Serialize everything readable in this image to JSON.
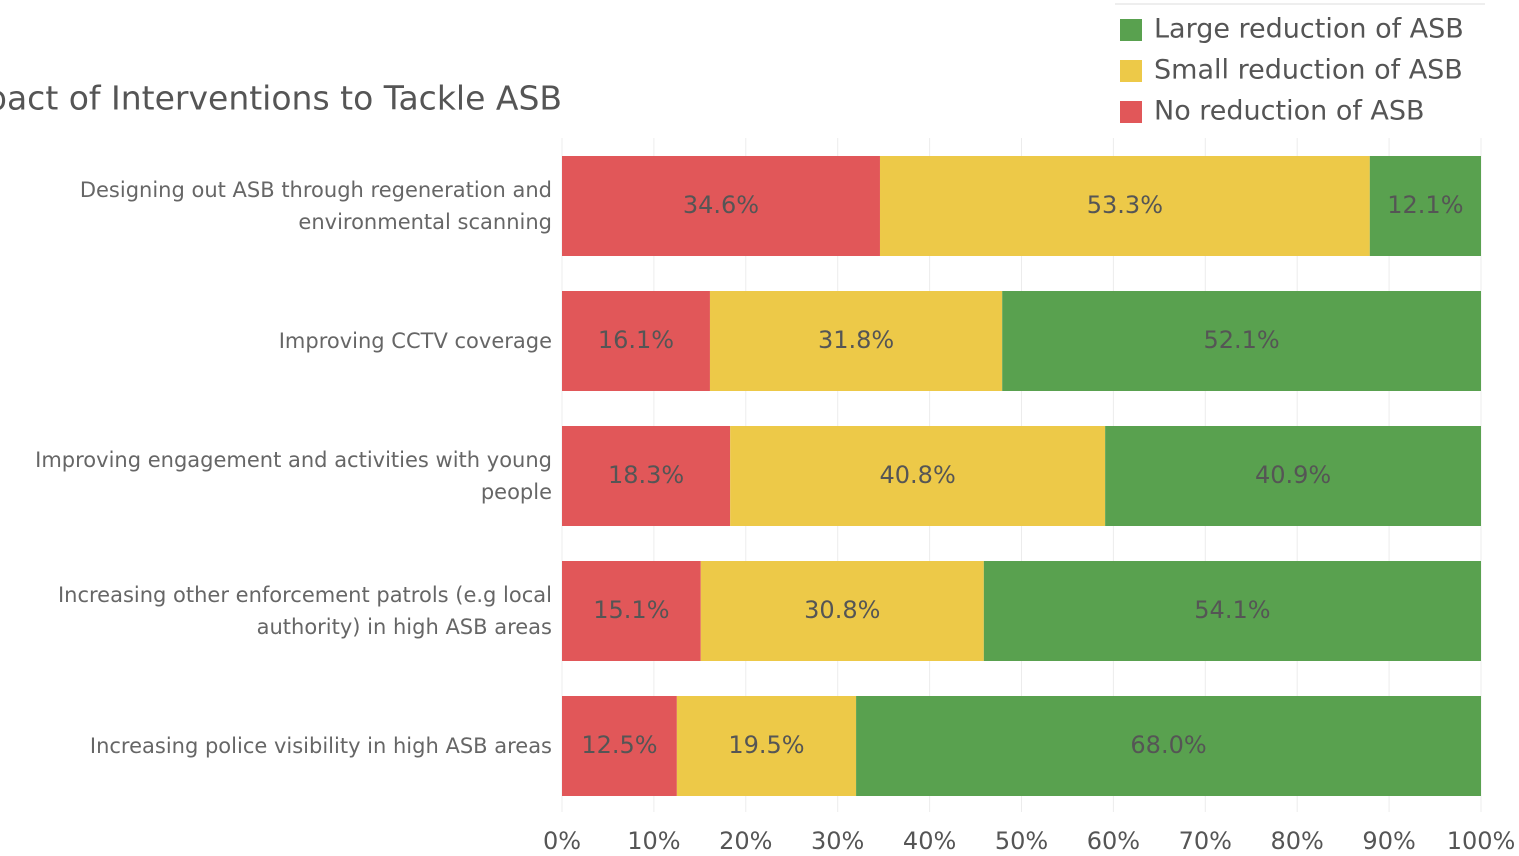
{
  "chart_data": {
    "type": "stacked_barh",
    "title": "pact of Interventions to Tackle ASB",
    "categories": [
      "Designing out ASB through regeneration and environmental scanning",
      "Improving CCTV coverage",
      "Improving engagement and activities with young people",
      "Increasing other enforcement patrols (e.g local authority) in high ASB areas",
      "Increasing police visibility in high ASB areas"
    ],
    "series": [
      {
        "name": "No reduction of ASB",
        "color": "#e15759",
        "values": [
          34.6,
          16.1,
          18.3,
          15.1,
          12.5
        ],
        "value_labels": [
          "34.6%",
          "16.1%",
          "18.3%",
          "15.1%",
          "12.5%"
        ]
      },
      {
        "name": "Small reduction of ASB",
        "color": "#edc948",
        "values": [
          53.3,
          31.8,
          40.8,
          30.8,
          19.5
        ],
        "value_labels": [
          "53.3%",
          "31.8%",
          "40.8%",
          "30.8%",
          "19.5%"
        ]
      },
      {
        "name": "Large reduction of ASB",
        "color": "#59a14f",
        "values": [
          12.1,
          52.1,
          40.9,
          54.1,
          68.0
        ],
        "value_labels": [
          "12.1%",
          "52.1%",
          "40.9%",
          "54.1%",
          "68.0%"
        ]
      }
    ],
    "xlim": [
      0,
      100
    ],
    "xticks": [
      {
        "value": 0,
        "label": "0%"
      },
      {
        "value": 10,
        "label": "10%"
      },
      {
        "value": 20,
        "label": "20%"
      },
      {
        "value": 30,
        "label": "30%"
      },
      {
        "value": 40,
        "label": "40%"
      },
      {
        "value": 50,
        "label": "50%"
      },
      {
        "value": 60,
        "label": "60%"
      },
      {
        "value": 70,
        "label": "70%"
      },
      {
        "value": 80,
        "label": "80%"
      },
      {
        "value": 90,
        "label": "90%"
      },
      {
        "value": 100,
        "label": "100%"
      }
    ],
    "grid": true,
    "legend": "top-right"
  }
}
